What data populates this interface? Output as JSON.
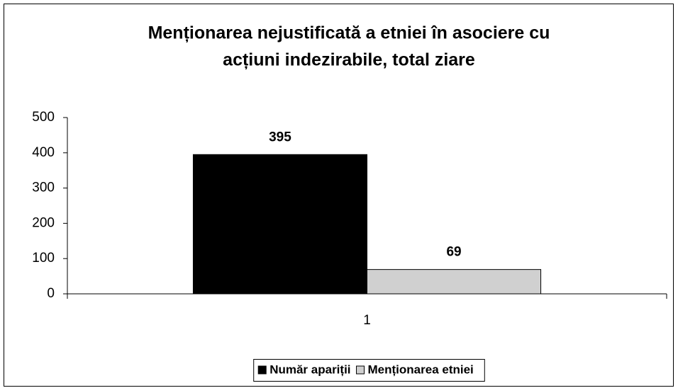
{
  "chart_data": {
    "type": "bar",
    "title": [
      "Menționarea nejustificată a etniei în asociere cu",
      "acțiuni indezirabile, total ziare"
    ],
    "categories": [
      "1"
    ],
    "series": [
      {
        "name": "Număr apariții",
        "color": "#000000",
        "values": [
          395
        ]
      },
      {
        "name": "Menționarea etniei",
        "color": "#d0d0d0",
        "values": [
          69
        ]
      }
    ],
    "ylim": [
      0,
      500
    ],
    "yticks": [
      0,
      100,
      200,
      300,
      400,
      500
    ],
    "grid": false,
    "legend": "bottom"
  }
}
